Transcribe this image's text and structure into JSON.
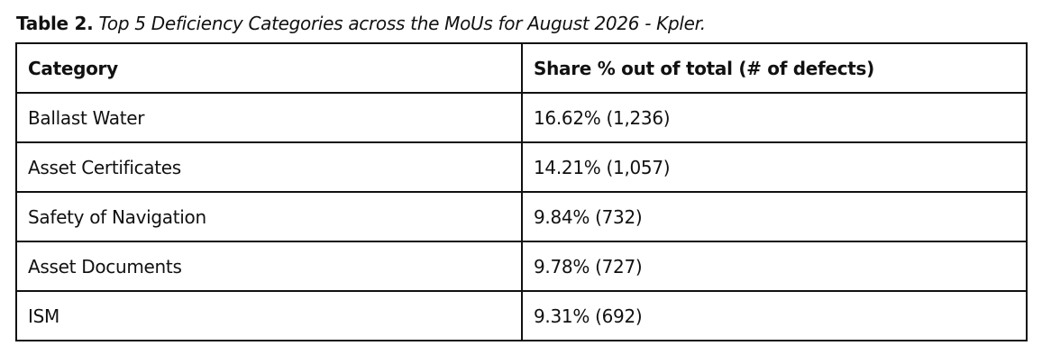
{
  "caption": {
    "label": "Table 2.",
    "text": "Top 5 Deficiency Categories across the MoUs for August 2026 - Kpler."
  },
  "table": {
    "header": [
      "Category",
      "Share % out of total (# of defects)"
    ],
    "rows": [
      [
        "Ballast Water",
        "16.62% (1,236)"
      ],
      [
        "Asset Certificates",
        "14.21% (1,057)"
      ],
      [
        "Safety of Navigation",
        "9.84% (732)"
      ],
      [
        "Asset Documents",
        "9.78% (727)"
      ],
      [
        "ISM",
        "9.31% (692)"
      ]
    ]
  }
}
